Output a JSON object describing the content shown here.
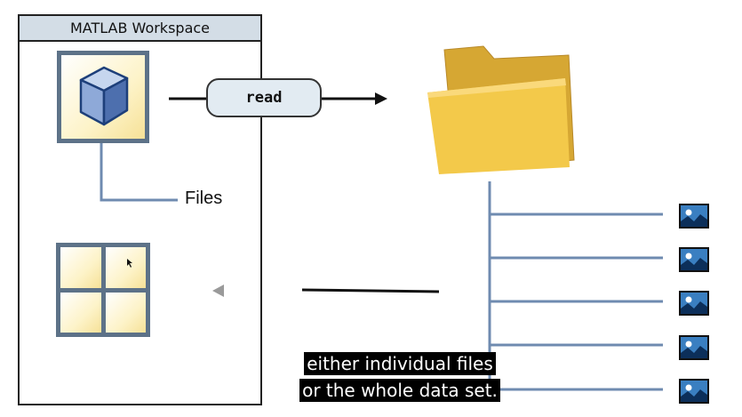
{
  "workspace": {
    "title": "MATLAB Workspace"
  },
  "read_button": {
    "label": "read"
  },
  "files_label": "Files",
  "subtitles": [
    "either individual files",
    "or the whole data set."
  ],
  "icons": {
    "variable": "cube-icon",
    "datastore": "grid-icon",
    "folder": "folder-icon",
    "image_file": "image-file-icon",
    "play": "triangle-left-icon"
  },
  "colors": {
    "connector": "#6f8bb0",
    "frame": "#5d7288",
    "tile_fill": "#fdf3c8",
    "folder": "#f3c94a",
    "pill": "#e2ebf2"
  }
}
